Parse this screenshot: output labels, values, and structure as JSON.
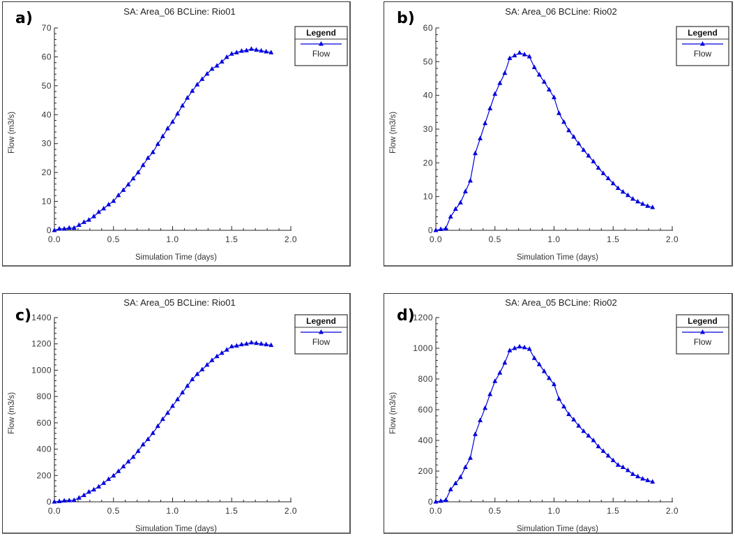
{
  "figure": {
    "panels": [
      "a)",
      "b)",
      "c)",
      "d)"
    ]
  },
  "chart_data": [
    {
      "type": "line",
      "panel_label": "a)",
      "title": "SA: Area_06 BCLine: Rio01",
      "xlabel": "Simulation Time (days)",
      "ylabel": "Flow  (m3/s)",
      "xlim": [
        0,
        2
      ],
      "ylim": [
        0,
        70
      ],
      "xticks": [
        "0.0",
        "0.5",
        "1.0",
        "1.5",
        "2.0"
      ],
      "yticks": [
        "0",
        "10",
        "20",
        "30",
        "40",
        "50",
        "60",
        "70"
      ],
      "grid": false,
      "legend": {
        "title": "Legend",
        "position": "top-right",
        "entries": [
          "Flow"
        ]
      },
      "series": [
        {
          "name": "Flow",
          "color": "#0000dd",
          "marker": "triangle",
          "x_step": 0.041667,
          "values": [
            0,
            0.5,
            0.5,
            0.8,
            0.8,
            1.8,
            2.8,
            3.6,
            4.8,
            6.3,
            7.5,
            8.9,
            10.1,
            12.1,
            13.9,
            15.8,
            17.9,
            20.0,
            22.5,
            25.0,
            27.0,
            29.8,
            32.5,
            35.2,
            37.5,
            40.3,
            43.1,
            45.8,
            48.2,
            50.4,
            52.3,
            54.1,
            55.8,
            56.9,
            58.3,
            59.9,
            61.0,
            61.5,
            62.0,
            62.2,
            62.7,
            62.4,
            62.1,
            61.8,
            61.5
          ]
        }
      ]
    },
    {
      "type": "line",
      "panel_label": "b)",
      "title": "SA: Area_06 BCLine: Rio02",
      "xlabel": "Simulation Time (days)",
      "ylabel": "Flow  (m3/s)",
      "xlim": [
        0,
        2
      ],
      "ylim": [
        0,
        60
      ],
      "xticks": [
        "0.0",
        "0.5",
        "1.0",
        "1.5",
        "2.0"
      ],
      "yticks": [
        "0",
        "10",
        "20",
        "30",
        "40",
        "50",
        "60"
      ],
      "grid": false,
      "legend": {
        "title": "Legend",
        "position": "top-right",
        "entries": [
          "Flow"
        ]
      },
      "series": [
        {
          "name": "Flow",
          "color": "#0000dd",
          "marker": "triangle",
          "x_step": 0.041667,
          "values": [
            0,
            0.3,
            0.5,
            4.0,
            6.3,
            8.2,
            11.5,
            14.7,
            22.8,
            27.2,
            31.7,
            36.1,
            40.4,
            43.6,
            46.6,
            51.0,
            51.8,
            52.6,
            52.1,
            51.5,
            48.3,
            46.1,
            44.0,
            41.7,
            39.4,
            34.7,
            32.1,
            29.6,
            27.7,
            25.7,
            23.8,
            22.1,
            20.4,
            18.5,
            16.9,
            15.4,
            13.9,
            12.5,
            11.4,
            10.4,
            9.3,
            8.5,
            7.8,
            7.2,
            6.8
          ]
        }
      ]
    },
    {
      "type": "line",
      "panel_label": "c)",
      "title": "SA: Area_05 BCLine: Rio01",
      "xlabel": "Simulation Time (days)",
      "ylabel": "Flow  (m3/s)",
      "xlim": [
        0,
        2
      ],
      "ylim": [
        0,
        1400
      ],
      "xticks": [
        "0.0",
        "0.5",
        "1.0",
        "1.5",
        "2.0"
      ],
      "yticks": [
        "0",
        "200",
        "400",
        "600",
        "800",
        "1000",
        "1200",
        "1400"
      ],
      "grid": false,
      "legend": {
        "title": "Legend",
        "position": "top-right",
        "entries": [
          "Flow"
        ]
      },
      "series": [
        {
          "name": "Flow",
          "color": "#0000dd",
          "marker": "triangle",
          "x_step": 0.041667,
          "values": [
            0,
            3,
            8,
            10,
            12,
            30,
            50,
            75,
            92,
            115,
            142,
            172,
            198,
            232,
            268,
            305,
            340,
            385,
            435,
            475,
            522,
            575,
            628,
            675,
            728,
            778,
            830,
            880,
            930,
            970,
            1005,
            1040,
            1075,
            1105,
            1130,
            1155,
            1180,
            1185,
            1195,
            1200,
            1210,
            1205,
            1200,
            1195,
            1190
          ]
        }
      ]
    },
    {
      "type": "line",
      "panel_label": "d)",
      "title": "SA: Area_05 BCLine: Rio02",
      "xlabel": "Simulation Time (days)",
      "ylabel": "Flow  (m3/s)",
      "xlim": [
        0,
        2
      ],
      "ylim": [
        0,
        1200
      ],
      "xticks": [
        "0.0",
        "0.5",
        "1.0",
        "1.5",
        "2.0"
      ],
      "yticks": [
        "0",
        "200",
        "400",
        "600",
        "800",
        "1000",
        "1200"
      ],
      "grid": false,
      "legend": {
        "title": "Legend",
        "position": "top-right",
        "entries": [
          "Flow"
        ]
      },
      "series": [
        {
          "name": "Flow",
          "color": "#0000dd",
          "marker": "triangle",
          "x_step": 0.041667,
          "values": [
            0,
            5,
            10,
            80,
            120,
            160,
            225,
            285,
            440,
            530,
            610,
            700,
            785,
            840,
            905,
            985,
            1000,
            1010,
            1005,
            995,
            935,
            895,
            850,
            805,
            765,
            670,
            620,
            570,
            535,
            495,
            460,
            430,
            400,
            360,
            330,
            300,
            270,
            240,
            225,
            205,
            180,
            165,
            150,
            140,
            130
          ]
        }
      ]
    }
  ]
}
